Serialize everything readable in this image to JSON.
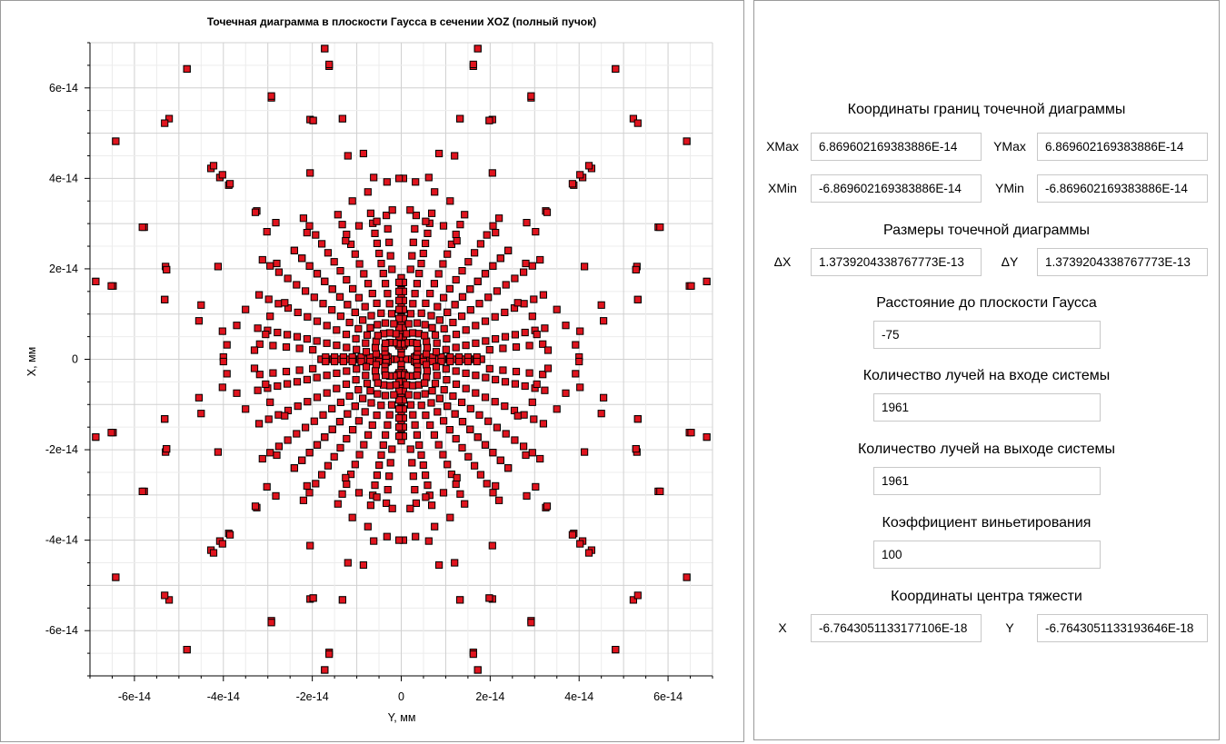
{
  "chart_data": {
    "type": "scatter",
    "title": "Точечная диаграмма в плоскости Гаусса в сечении XOZ (полный пучок)",
    "xlabel": "Y, мм",
    "ylabel": "X, мм",
    "xlim": [
      -7e-14,
      7e-14
    ],
    "ylim": [
      -7e-14,
      7e-14
    ],
    "x_ticks": [
      "-6e-14",
      "-4e-14",
      "-2e-14",
      "0",
      "2e-14",
      "4e-14",
      "6e-14"
    ],
    "y_ticks": [
      "6e-14",
      "4e-14",
      "2e-14",
      "0",
      "-2e-14",
      "-4e-14",
      "-6e-14"
    ],
    "grid": true,
    "marker": "square",
    "marker_color": "#e0141e",
    "marker_edge": "#000000",
    "series": [
      {
        "points_description_note": null,
        "spokes": [
          {
            "angle_deg": 0,
            "r": [
              6e-15,
              1.2e-14,
              1.8e-14,
              2.4e-14,
              3e-14
            ]
          },
          {
            "angle_deg": 90,
            "r": [
              6e-15,
              1.2e-14,
              1.8e-14,
              2.4e-14,
              3e-14
            ]
          }
        ]
      }
    ]
  },
  "info": {
    "bounds_title": "Координаты границ точечной диаграммы",
    "xmax_label": "XMax",
    "xmax_value": "6.869602169383886E-14",
    "ymax_label": "YMax",
    "ymax_value": "6.869602169383886E-14",
    "xmin_label": "XMin",
    "xmin_value": "-6.869602169383886E-14",
    "ymin_label": "YMin",
    "ymin_value": "-6.869602169383886E-14",
    "size_title": "Размеры точечной диаграммы",
    "dx_label": "ΔX",
    "dx_value": "1.3739204338767773E-13",
    "dy_label": "ΔY",
    "dy_value": "1.3739204338767773E-13",
    "gauss_title": "Расстояние до плоскости Гаусса",
    "gauss_value": "-75",
    "rays_in_title": "Количество лучей на входе системы",
    "rays_in_value": "1961",
    "rays_out_title": "Количество лучей на выходе системы",
    "rays_out_value": "1961",
    "vignetting_title": "Коэффициент виньетирования",
    "vignetting_value": "100",
    "centroid_title": "Координаты центра тяжести",
    "cx_label": "X",
    "cx_value": "-6.7643051133177106E-18",
    "cy_label": "Y",
    "cy_value": "-6.7643051133193646E-18"
  }
}
